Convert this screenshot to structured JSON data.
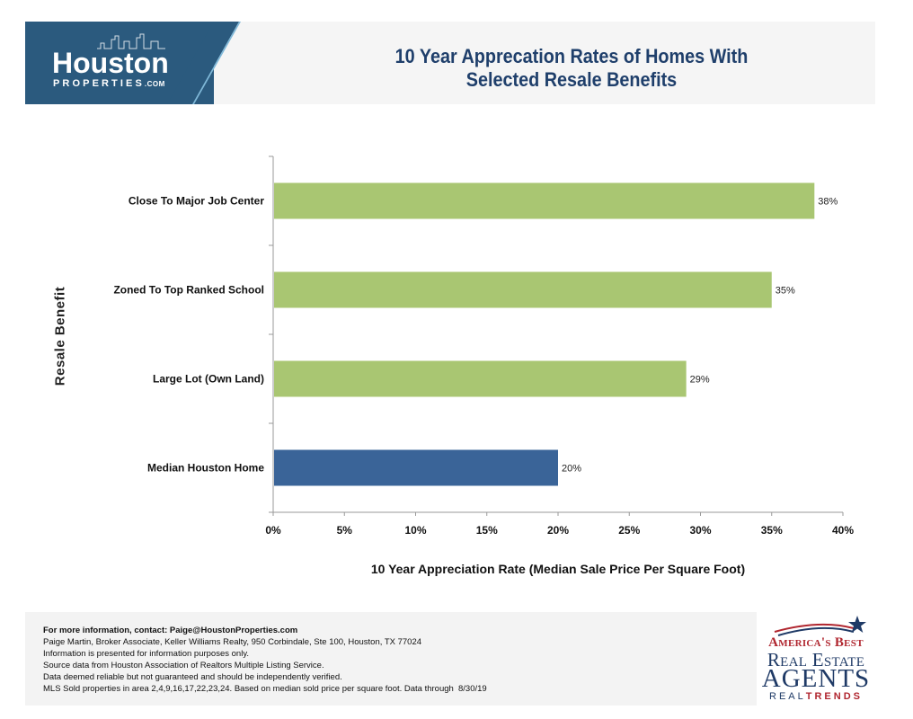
{
  "header": {
    "logo_main": "Houston",
    "logo_sub": "PROPERTIES",
    "logo_suffix": ".COM",
    "title_line1": "10 Year Apprecation Rates of Homes With",
    "title_line2": "Selected Resale Benefits"
  },
  "colors": {
    "highlight_bar": "#a9c672",
    "baseline_bar": "#3a6498",
    "header_blue": "#2b5a7e",
    "title_text": "#1f3f6b"
  },
  "chart_data": {
    "type": "bar",
    "orientation": "horizontal",
    "categories": [
      "Close To Major Job Center",
      "Zoned To Top Ranked School",
      "Large Lot (Own Land)",
      "Median Houston Home"
    ],
    "values": [
      38,
      35,
      29,
      20
    ],
    "value_labels": [
      "38%",
      "35%",
      "29%",
      "20%"
    ],
    "bar_colors": [
      "#a9c672",
      "#a9c672",
      "#a9c672",
      "#3a6498"
    ],
    "xlabel": "10 Year Appreciation Rate (Median Sale Price Per Square Foot)",
    "ylabel": "Resale Benefit",
    "xlim": [
      0,
      40
    ],
    "x_ticks": [
      "0%",
      "5%",
      "10%",
      "15%",
      "20%",
      "25%",
      "30%",
      "35%",
      "40%"
    ],
    "grid": false
  },
  "footer": {
    "contact": "For more information, contact: Paige@HoustonProperties.com",
    "line1": "Paige Martin, Broker Associate, Keller Williams Realty, 950 Corbindale, Ste 100, Houston, TX 77024",
    "line2": "Information is presented for information purposes only.",
    "line3": "Source data from Houston Association of Realtors Multiple Listing Service.",
    "line4": "Data deemed reliable but not guaranteed and should be independently verified.",
    "line5": "MLS Sold properties in area 2,4,9,16,17,22,23,24. Based on median sold price per square foot. Data through",
    "date": "8/30/19"
  },
  "badge": {
    "line1": "America's Best",
    "line2": "Real Estate",
    "line3": "AGENTS",
    "line4a": "REAL",
    "line4b": "TRENDS"
  }
}
